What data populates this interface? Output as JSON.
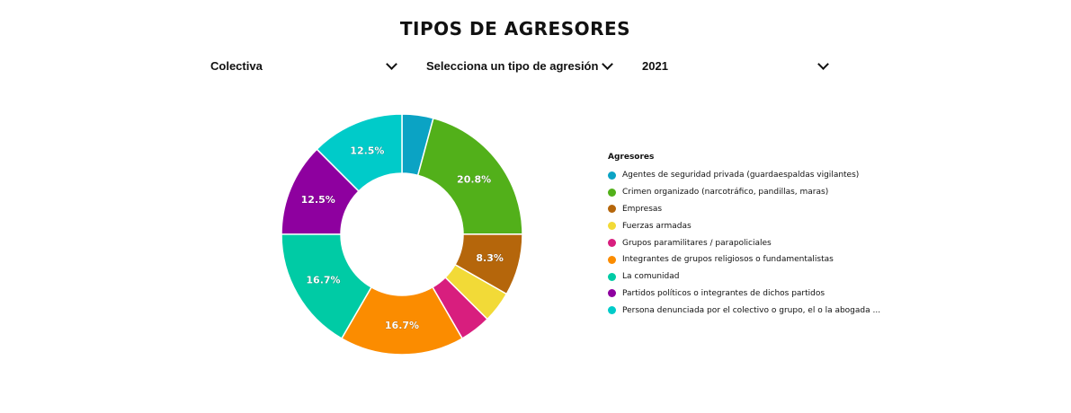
{
  "page": {
    "title": "TIPOS DE AGRESORES"
  },
  "filters": [
    {
      "value": "Colectiva"
    },
    {
      "value": "Selecciona un tipo de agresión"
    },
    {
      "value": "2021"
    }
  ],
  "chart_data": {
    "type": "pie",
    "donut": true,
    "legend_title": "Agresores",
    "legend_position": "right",
    "slices": [
      {
        "label": "Agentes de seguridad privada (guardaespaldas vigilantes)",
        "value": 4.2,
        "color": "#0ba3c4",
        "show_label": false
      },
      {
        "label": "Crimen organizado (narcotráfico, pandillas, maras)",
        "value": 20.8,
        "color": "#52b01a",
        "show_label": true
      },
      {
        "label": "Empresas",
        "value": 8.3,
        "color": "#b5660b",
        "show_label": true
      },
      {
        "label": "Fuerzas armadas",
        "value": 4.2,
        "color": "#f2da37",
        "show_label": false
      },
      {
        "label": "Grupos paramilitares / parapoliciales",
        "value": 4.2,
        "color": "#d81e7e",
        "show_label": false
      },
      {
        "label": "Integrantes de grupos religiosos o fundamentalistas",
        "value": 16.7,
        "color": "#fb8c00",
        "show_label": true
      },
      {
        "label": "La comunidad",
        "value": 16.7,
        "color": "#00cba5",
        "show_label": true
      },
      {
        "label": "Partidos políticos o integrantes de dichos partidos",
        "value": 12.5,
        "color": "#8e009f",
        "show_label": true
      },
      {
        "label": "Persona denunciada por el colectivo o grupo, el o la abogada ...",
        "value": 12.5,
        "color": "#00cbc9",
        "show_label": true
      }
    ]
  }
}
